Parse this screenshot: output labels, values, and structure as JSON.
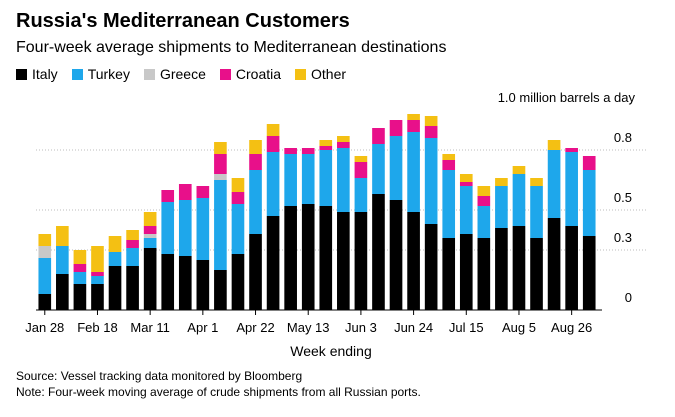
{
  "header": {
    "title": "Russia's Mediterranean Customers",
    "subtitle": "Four-week average shipments to Mediterranean destinations"
  },
  "colors": {
    "Italy": "#000000",
    "Turkey": "#1ea7eb",
    "Greece": "#c8c8c8",
    "Croatia": "#e8108a",
    "Other": "#f4c013"
  },
  "chart_data": {
    "type": "bar",
    "stacked": true,
    "title": "Russia's Mediterranean Customers",
    "subtitle": "Four-week average shipments to Mediterranean destinations",
    "unit_label": "1.0 million barrels a day",
    "xlabel": "Week ending",
    "ylabel": "",
    "ylim": [
      0,
      1.0
    ],
    "yticks": [
      0,
      0.3,
      0.5,
      0.8
    ],
    "ytick_labels": [
      "0",
      "0.3",
      "0.5",
      "0.8"
    ],
    "grid": true,
    "legend_position": "top-left",
    "x_tick_labels": [
      "Jan 28",
      "Feb 18",
      "Mar 11",
      "Apr 1",
      "Apr 22",
      "May 13",
      "Jun 3",
      "Jun 24",
      "Jul 15",
      "Aug 5",
      "Aug 26"
    ],
    "x_tick_indices": [
      0,
      3,
      6,
      9,
      12,
      15,
      18,
      21,
      24,
      27,
      30
    ],
    "categories": [
      "Jan 28",
      "Feb 4",
      "Feb 11",
      "Feb 18",
      "Feb 25",
      "Mar 4",
      "Mar 11",
      "Mar 18",
      "Mar 25",
      "Apr 1",
      "Apr 8",
      "Apr 15",
      "Apr 22",
      "Apr 29",
      "May 6",
      "May 13",
      "May 20",
      "May 27",
      "Jun 3",
      "Jun 10",
      "Jun 17",
      "Jun 24",
      "Jul 1",
      "Jul 8",
      "Jul 15",
      "Jul 22",
      "Jul 29",
      "Aug 5",
      "Aug 12",
      "Aug 19",
      "Aug 26",
      "Sep 2"
    ],
    "series": [
      {
        "name": "Italy",
        "values": [
          0.08,
          0.18,
          0.13,
          0.13,
          0.22,
          0.22,
          0.31,
          0.28,
          0.27,
          0.25,
          0.2,
          0.28,
          0.38,
          0.47,
          0.52,
          0.53,
          0.52,
          0.49,
          0.49,
          0.58,
          0.55,
          0.49,
          0.43,
          0.36,
          0.38,
          0.36,
          0.41,
          0.42,
          0.36,
          0.46,
          0.42,
          0.37
        ]
      },
      {
        "name": "Turkey",
        "values": [
          0.18,
          0.14,
          0.06,
          0.04,
          0.07,
          0.09,
          0.05,
          0.26,
          0.28,
          0.31,
          0.45,
          0.25,
          0.32,
          0.32,
          0.26,
          0.25,
          0.28,
          0.32,
          0.17,
          0.25,
          0.32,
          0.4,
          0.43,
          0.34,
          0.24,
          0.16,
          0.21,
          0.26,
          0.26,
          0.34,
          0.37,
          0.33
        ]
      },
      {
        "name": "Greece",
        "values": [
          0.06,
          0.0,
          0.0,
          0.0,
          0.0,
          0.0,
          0.02,
          0.0,
          0.0,
          0.0,
          0.03,
          0.0,
          0.0,
          0.0,
          0.0,
          0.0,
          0.0,
          0.0,
          0.0,
          0.0,
          0.0,
          0.0,
          0.0,
          0.0,
          0.0,
          0.0,
          0.0,
          0.0,
          0.0,
          0.0,
          0.0,
          0.0
        ]
      },
      {
        "name": "Croatia",
        "values": [
          0.0,
          0.0,
          0.04,
          0.02,
          0.0,
          0.04,
          0.04,
          0.06,
          0.08,
          0.06,
          0.1,
          0.06,
          0.08,
          0.08,
          0.03,
          0.03,
          0.02,
          0.03,
          0.08,
          0.08,
          0.08,
          0.06,
          0.06,
          0.05,
          0.02,
          0.05,
          0.0,
          0.0,
          0.0,
          0.0,
          0.02,
          0.07
        ]
      },
      {
        "name": "Other",
        "values": [
          0.06,
          0.1,
          0.07,
          0.13,
          0.08,
          0.05,
          0.07,
          0.0,
          0.0,
          0.0,
          0.06,
          0.07,
          0.07,
          0.06,
          0.0,
          0.0,
          0.03,
          0.03,
          0.03,
          0.0,
          0.0,
          0.03,
          0.05,
          0.03,
          0.04,
          0.05,
          0.04,
          0.04,
          0.04,
          0.05,
          0.0,
          0.0
        ]
      }
    ]
  },
  "footer": {
    "source": "Source: Vessel tracking data monitored by Bloomberg",
    "note": "Note: Four-week moving average of crude shipments from all Russian ports."
  }
}
